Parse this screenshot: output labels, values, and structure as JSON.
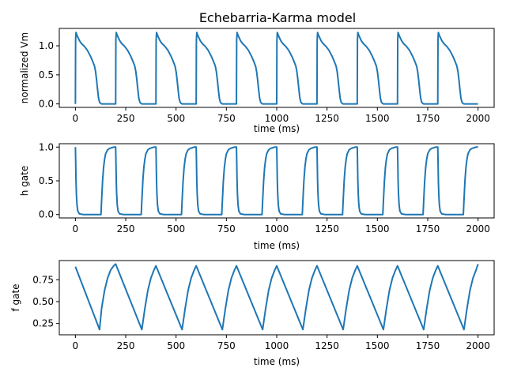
{
  "colors": {
    "line": "#1f77b4",
    "axes": "#000000",
    "background": "#ffffff"
  },
  "chart_data": [
    {
      "type": "line",
      "title": "Echebarria-Karma model",
      "xlabel": "time (ms)",
      "ylabel": "normalized Vm",
      "xlim": [
        -80,
        2080
      ],
      "ylim": [
        -0.06,
        1.3
      ],
      "xticks": [
        0,
        250,
        500,
        750,
        1000,
        1250,
        1500,
        1750,
        2000
      ],
      "yticks": [
        0.0,
        0.5,
        1.0
      ],
      "ytick_labels": [
        "0.0",
        "0.5",
        "1.0"
      ],
      "grid": false,
      "series": [
        {
          "cycle_length_ms": 200,
          "beats": 10,
          "x": [
            0,
            1,
            3,
            8,
            20,
            30,
            45,
            60,
            75,
            85,
            95,
            100,
            105,
            110,
            115,
            120,
            125,
            130,
            140,
            160,
            180,
            199
          ],
          "values": [
            0.0,
            1.1,
            1.23,
            1.18,
            1.09,
            1.04,
            0.99,
            0.92,
            0.82,
            0.74,
            0.65,
            0.56,
            0.42,
            0.25,
            0.1,
            0.03,
            0.01,
            0.0,
            0.0,
            0.0,
            0.0,
            0.0
          ]
        }
      ]
    },
    {
      "type": "line",
      "title": "",
      "xlabel": "time (ms)",
      "ylabel": "h gate",
      "xlim": [
        -80,
        2080
      ],
      "ylim": [
        -0.05,
        1.05
      ],
      "xticks": [
        0,
        250,
        500,
        750,
        1000,
        1250,
        1500,
        1750,
        2000
      ],
      "yticks": [
        0.0,
        0.5,
        1.0
      ],
      "ytick_labels": [
        "0.0",
        "0.5",
        "1.0"
      ],
      "grid": false,
      "series": [
        {
          "cycle_length_ms": 200,
          "beats": 10,
          "x": [
            0,
            1,
            3,
            5,
            8,
            12,
            20,
            40,
            80,
            120,
            127,
            130,
            135,
            140,
            145,
            150,
            160,
            170,
            180,
            190,
            199
          ],
          "values": [
            1.0,
            0.85,
            0.5,
            0.3,
            0.14,
            0.05,
            0.01,
            0.0,
            0.0,
            0.0,
            0.0,
            0.2,
            0.5,
            0.7,
            0.82,
            0.9,
            0.96,
            0.98,
            0.99,
            1.0,
            1.0
          ]
        }
      ]
    },
    {
      "type": "line",
      "title": "",
      "xlabel": "time (ms)",
      "ylabel": "f gate",
      "xlim": [
        -80,
        2080
      ],
      "ylim": [
        0.12,
        0.97
      ],
      "xticks": [
        0,
        250,
        500,
        750,
        1000,
        1250,
        1500,
        1750,
        2000
      ],
      "yticks": [
        0.25,
        0.5,
        0.75
      ],
      "ytick_labels": [
        "0.25",
        "0.50",
        "0.75"
      ],
      "grid": false,
      "series": [
        {
          "x": [
            0,
            120,
            130,
            145,
            160,
            175,
            190,
            200,
            330,
            345,
            360,
            375,
            390,
            400,
            530,
            545,
            560,
            575,
            590,
            600,
            730,
            745,
            760,
            775,
            790,
            800,
            930,
            945,
            960,
            975,
            990,
            1000,
            1130,
            1145,
            1160,
            1175,
            1190,
            1200,
            1330,
            1345,
            1360,
            1375,
            1390,
            1400,
            1530,
            1545,
            1560,
            1575,
            1590,
            1600,
            1730,
            1745,
            1760,
            1775,
            1790,
            1800,
            1930,
            1945,
            1960,
            1975,
            1990,
            2000
          ],
          "values": [
            0.9,
            0.18,
            0.42,
            0.63,
            0.77,
            0.86,
            0.91,
            0.93,
            0.18,
            0.42,
            0.63,
            0.77,
            0.86,
            0.91,
            0.18,
            0.42,
            0.63,
            0.77,
            0.86,
            0.91,
            0.18,
            0.42,
            0.63,
            0.77,
            0.86,
            0.91,
            0.18,
            0.42,
            0.63,
            0.77,
            0.86,
            0.91,
            0.18,
            0.42,
            0.63,
            0.77,
            0.86,
            0.91,
            0.18,
            0.42,
            0.63,
            0.77,
            0.86,
            0.91,
            0.18,
            0.42,
            0.63,
            0.77,
            0.86,
            0.91,
            0.18,
            0.42,
            0.63,
            0.77,
            0.86,
            0.91,
            0.18,
            0.42,
            0.63,
            0.77,
            0.86,
            0.93
          ]
        }
      ]
    }
  ]
}
